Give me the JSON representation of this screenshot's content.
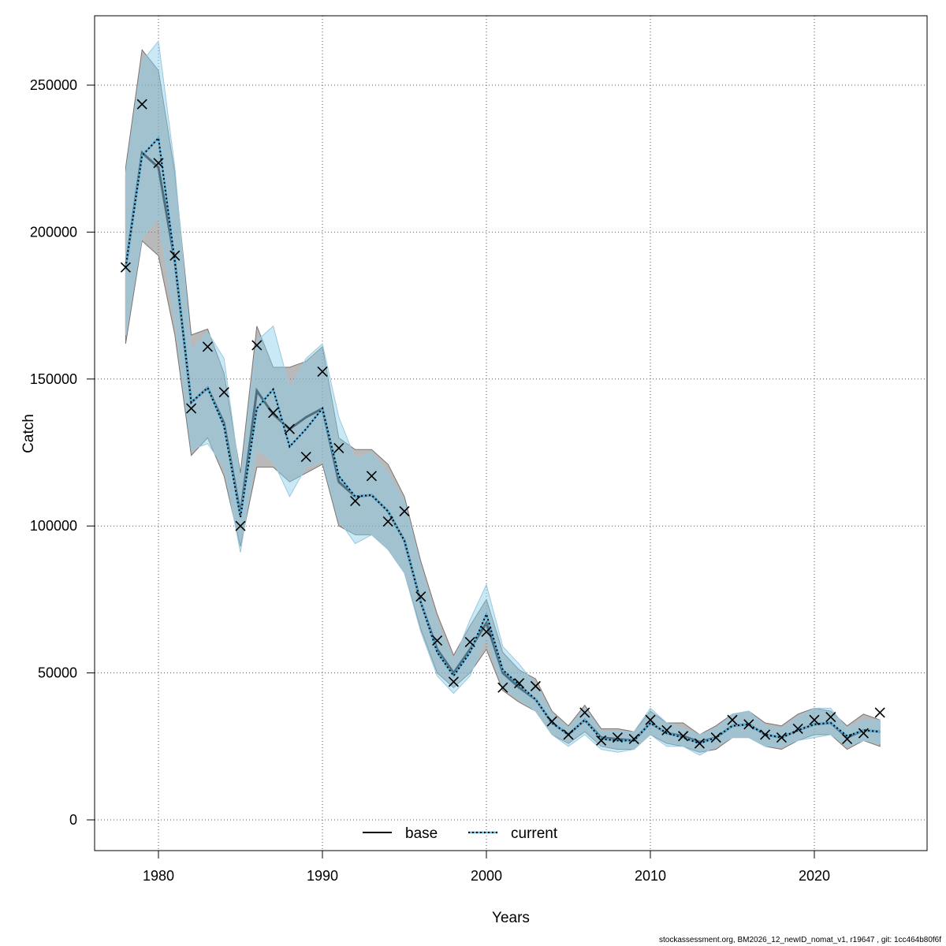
{
  "chart_data": {
    "type": "line",
    "title": "",
    "xlabel": "Years",
    "ylabel": "Catch",
    "xlim": [
      1976.2,
      2026.9
    ],
    "ylim": [
      -10000,
      272000
    ],
    "x_ticks": [
      1980,
      1990,
      2000,
      2010,
      2020
    ],
    "y_ticks": [
      0,
      50000,
      100000,
      150000,
      200000,
      250000
    ],
    "grid": true,
    "legend_position": "bottom",
    "years": [
      1978,
      1979,
      1980,
      1981,
      1982,
      1983,
      1984,
      1985,
      1986,
      1987,
      1988,
      1989,
      1990,
      1991,
      1992,
      1993,
      1994,
      1995,
      1996,
      1997,
      1998,
      1999,
      2000,
      2001,
      2002,
      2003,
      2004,
      2005,
      2006,
      2007,
      2008,
      2009,
      2010,
      2011,
      2012,
      2013,
      2014,
      2015,
      2016,
      2017,
      2018,
      2019,
      2020,
      2021,
      2022,
      2023,
      2024
    ],
    "observed": [
      188000,
      243500,
      223500,
      192000,
      140000,
      161000,
      145500,
      100000,
      161500,
      138500,
      133000,
      123500,
      152500,
      126500,
      108500,
      117000,
      101500,
      105000,
      76000,
      61000,
      47000,
      60500,
      64000,
      45000,
      46500,
      45500,
      33500,
      29000,
      36500,
      27000,
      28000,
      27500,
      34000,
      30500,
      28500,
      26000,
      28000,
      34000,
      32500,
      29000,
      28000,
      31000,
      34000,
      35000,
      27500,
      29500,
      36500
    ],
    "series": [
      {
        "name": "base",
        "color": "#000000",
        "band_color": "#808080",
        "values": [
          188000,
          227000,
          222000,
          190000,
          142000,
          147000,
          135000,
          104000,
          146000,
          138000,
          133000,
          137000,
          140000,
          115000,
          110000,
          110500,
          105000,
          95000,
          74000,
          58000,
          50000,
          58000,
          67000,
          50000,
          45000,
          41000,
          33000,
          29000,
          34000,
          28000,
          27500,
          27000,
          33000,
          29500,
          28500,
          26500,
          28000,
          32000,
          32500,
          29000,
          28000,
          30500,
          32500,
          33000,
          28000,
          30500,
          30000
        ],
        "lower": [
          162000,
          197000,
          192000,
          165000,
          124000,
          130000,
          117000,
          93000,
          120000,
          120000,
          115000,
          118000,
          121000,
          100000,
          97000,
          97000,
          92000,
          84000,
          65000,
          50000,
          45000,
          50000,
          58000,
          44000,
          40000,
          37000,
          29000,
          26000,
          30000,
          25000,
          24000,
          24000,
          29000,
          26000,
          25000,
          23000,
          24000,
          28000,
          28000,
          25000,
          24000,
          27000,
          29000,
          29000,
          24000,
          27000,
          25000
        ],
        "upper": [
          222000,
          262000,
          255000,
          220000,
          165000,
          167000,
          152000,
          118000,
          168000,
          154000,
          154000,
          156000,
          161000,
          130000,
          126000,
          126000,
          121000,
          110000,
          88000,
          70000,
          56000,
          66000,
          75000,
          57000,
          51000,
          48000,
          37000,
          32000,
          39000,
          31000,
          31000,
          30000,
          37000,
          33000,
          33000,
          29000,
          32000,
          36000,
          37000,
          33000,
          32000,
          36000,
          38000,
          37000,
          32000,
          36000,
          34000
        ]
      },
      {
        "name": "current",
        "color": "#00366b",
        "band_color": "#87ceeb",
        "values": [
          188000,
          226000,
          232000,
          190000,
          142000,
          147000,
          134000,
          103000,
          140000,
          146500,
          127000,
          133000,
          140000,
          117000,
          110000,
          110500,
          105000,
          95000,
          74000,
          57000,
          49000,
          57000,
          70000,
          51000,
          46000,
          41000,
          33000,
          29000,
          34000,
          27500,
          27000,
          27000,
          33000,
          29500,
          28000,
          26000,
          28000,
          32000,
          32500,
          29000,
          28000,
          30500,
          32500,
          33000,
          28500,
          30500,
          30000
        ],
        "lower": [
          165000,
          198000,
          205000,
          170000,
          126000,
          128000,
          120000,
          91000,
          126000,
          122000,
          110000,
          120000,
          122000,
          102000,
          94000,
          97000,
          92000,
          84000,
          64000,
          49000,
          43000,
          49000,
          62000,
          45000,
          41000,
          37000,
          29000,
          25000,
          29000,
          24000,
          23000,
          24000,
          29000,
          25000,
          25000,
          22000,
          25000,
          28000,
          28000,
          25000,
          25000,
          27000,
          28000,
          29000,
          25000,
          27000,
          26000
        ],
        "upper": [
          220000,
          258000,
          265000,
          222000,
          160000,
          166000,
          157000,
          116000,
          163000,
          168000,
          147000,
          157000,
          162000,
          137000,
          123000,
          125000,
          118000,
          108000,
          86000,
          67000,
          54000,
          68000,
          80000,
          59000,
          53000,
          46000,
          36000,
          31000,
          38000,
          30000,
          30000,
          30000,
          38000,
          33000,
          31000,
          29000,
          31000,
          36000,
          37000,
          32000,
          31000,
          35000,
          38000,
          38000,
          31000,
          34000,
          34000
        ]
      }
    ]
  },
  "footer": "stockassessment.org, BM2026_12_newID_nomat_v1, r19647 , git: 1cc464b80f6f"
}
